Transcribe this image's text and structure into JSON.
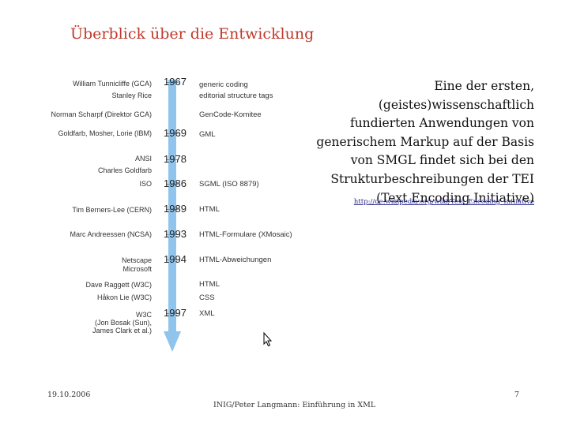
{
  "slide": {
    "title": "Überblick über die Entwicklung",
    "description": "Eine der ersten, (geistes)wissenschaftlich fundierten Anwendungen von generischem Markup auf der Basis von SMGL findet sich bei den Strukturbeschreibungen der TEI (Text Encoding Initiative)",
    "link": "http://de.wikipedia.org/wiki/Text_Encoding_Initiative",
    "footer": {
      "date": "19.10.2006",
      "center": "INIG/Peter Langmann: Einführung in XML",
      "page": "7"
    }
  },
  "timeline": {
    "colors": {
      "bar": "#8fc4ec",
      "tick": "#5a9ed3"
    },
    "years": [
      "1967",
      "1969",
      "1978",
      "1986",
      "1989",
      "1993",
      "1994",
      "1997"
    ],
    "people": [
      "William Tunnicliffe (GCA)",
      "Stanley Rice",
      "Norman Scharpf (Direktor GCA)",
      "Goldfarb, Mosher, Lorie (IBM)",
      "ANSI",
      "Charles Goldfarb",
      "ISO",
      "Tim Berners-Lee (CERN)",
      "Marc Andreessen (NCSA)",
      "Netscape",
      "Microsoft",
      "Dave Raggett (W3C)",
      "Håkon Lie (W3C)",
      "W3C",
      "(Jon Bosak (Sun),",
      "James Clark et al.)"
    ],
    "events": [
      "generic coding",
      "editorial structure tags",
      "GenCode-Komitee",
      "GML",
      "SGML (ISO 8879)",
      "HTML",
      "HTML-Formulare (XMosaic)",
      "HTML-Abweichungen",
      "HTML",
      "CSS",
      "XML"
    ]
  }
}
